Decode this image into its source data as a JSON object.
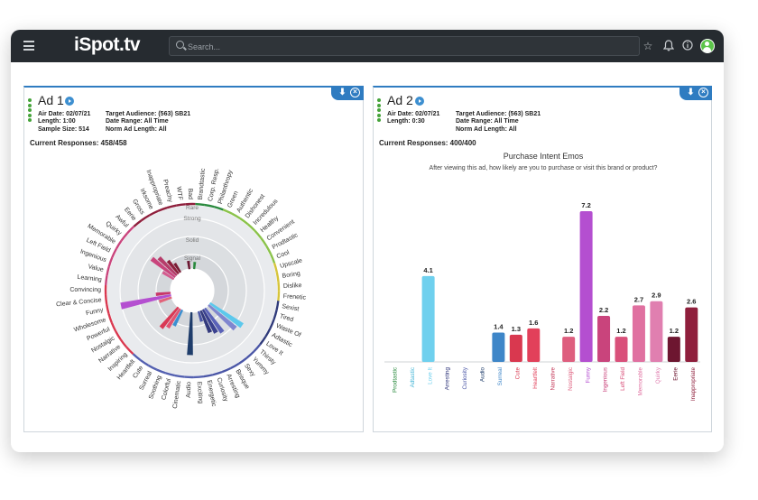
{
  "app": {
    "logo": "iSpot.tv"
  },
  "search": {
    "placeholder": "Search..."
  },
  "ad1": {
    "title": "Ad 1",
    "air_date": "Air Date: 02/07/21",
    "length": "Length: 1:00",
    "sample_size": "Sample Size: 514",
    "target": "Target Audience: (563) SB21",
    "date_range": "Date Range: All Time",
    "norm": "Norm Ad Length: All",
    "responses": "Current Responses: 458/458",
    "rings": [
      "Rare",
      "Strong",
      "Solid",
      "Signal"
    ],
    "labels": [
      "Brandtastic",
      "Corp. Resp.",
      "Philanthropy",
      "Green",
      "Authentic",
      "Dishonest",
      "Incredulous",
      "Healthy",
      "Convenient",
      "Prodtastic",
      "Cool",
      "Upscale",
      "Boring",
      "Dislike",
      "Frenetic",
      "Sexist",
      "Tired",
      "Waste Of",
      "Adtastic",
      "Love It",
      "Thirsty",
      "Yummy",
      "Sexy",
      "Brisque",
      "Arresting",
      "Curiosity",
      "Energetic",
      "Exciting",
      "Audio",
      "Cinematic",
      "Colorful",
      "Soothing",
      "Surreal",
      "Cute",
      "Heartfelt",
      "Inspiring",
      "Narrative",
      "Nostalgic",
      "Powerful",
      "Wholesome",
      "Funny",
      "Clear & Concise",
      "Convincing",
      "Learning",
      "Value",
      "Ingenious",
      "Left Field",
      "Memorable",
      "Quirky",
      "Awful",
      "Eerie",
      "Gross",
      "Irksome",
      "Inappropriate",
      "Preachy",
      "WTF",
      "Bad"
    ],
    "wedges": [
      {
        "label": "Brandtastic",
        "value": 0.12,
        "color": "#2a8a3e"
      },
      {
        "label": "Love It",
        "value": 0.66,
        "color": "#5cc8ec"
      },
      {
        "label": "Thirsty",
        "value": 0.6,
        "color": "#7f86cf"
      },
      {
        "label": "Sexy",
        "value": 0.5,
        "color": "#5a62b8"
      },
      {
        "label": "Brisque",
        "value": 0.45,
        "color": "#3a418f"
      },
      {
        "label": "Arresting",
        "value": 0.4,
        "color": "#333a7d"
      },
      {
        "label": "Curiosity",
        "value": 0.18,
        "color": "#4a56a6"
      },
      {
        "label": "Audio",
        "value": 0.72,
        "color": "#1f3d6b"
      },
      {
        "label": "Surreal",
        "value": 0.3,
        "color": "#3c8fd0"
      },
      {
        "label": "Cute",
        "value": 0.38,
        "color": "#e25270"
      },
      {
        "label": "Heartfelt",
        "value": 0.45,
        "color": "#d93955"
      },
      {
        "label": "Wholesome",
        "value": 0.22,
        "color": "#e2637a"
      },
      {
        "label": "Funny",
        "value": 0.86,
        "color": "#b44fd0"
      },
      {
        "label": "Clear & Concise",
        "value": 0.25,
        "color": "#c9386a"
      },
      {
        "label": "Memorable",
        "value": 0.22,
        "color": "#d45c8f"
      },
      {
        "label": "Quirky",
        "value": 0.5,
        "color": "#c9447c"
      },
      {
        "label": "Awful",
        "value": 0.42,
        "color": "#b63c6a"
      },
      {
        "label": "Eerie",
        "value": 0.28,
        "color": "#8e1f3c"
      },
      {
        "label": "Gross",
        "value": 0.18,
        "color": "#7a1a33"
      },
      {
        "label": "WTF",
        "value": 0.14,
        "color": "#6b1530"
      }
    ]
  },
  "ad2": {
    "title": "Ad 2",
    "air_date": "Air Date: 02/07/21",
    "length": "Length: 0:30",
    "target": "Target Audience: (563) SB21",
    "date_range": "Date Range: All Time",
    "norm": "Norm Ad Length: All",
    "responses": "Current Responses: 400/400"
  },
  "chart_data": {
    "type": "bar",
    "title": "Purchase Intent Emos",
    "subtitle": "After viewing this ad, how likely are you to purchase or visit this brand or product?",
    "categories": [
      "Prodtastic",
      "Adtastic",
      "Love It",
      "Arresting",
      "Curiosity",
      "Audio",
      "Surreal",
      "Cute",
      "Heartfelt",
      "Narrative",
      "Nostalgic",
      "Funny",
      "Ingenious",
      "Left Field",
      "Memorable",
      "Quirky",
      "Eerie",
      "Inappropriate"
    ],
    "values": [
      null,
      null,
      4.1,
      null,
      null,
      null,
      1.4,
      1.3,
      1.6,
      null,
      1.2,
      7.2,
      2.2,
      1.2,
      2.7,
      2.9,
      1.2,
      2.6
    ],
    "value_labels": [
      "",
      "",
      "4.1",
      "",
      "",
      "",
      "1.4",
      "1.3",
      "1.6",
      "",
      "1.2",
      "7.2",
      "2.2",
      "1.2",
      "2.7",
      "2.9",
      "1.2",
      "2.6"
    ],
    "colors": [
      "#2a8a3e",
      "#45b5d6",
      "#6fd0ee",
      "#333a7d",
      "#4a56a6",
      "#1f3d6b",
      "#3e86c8",
      "#d9384f",
      "#e2405a",
      "#c43a5a",
      "#de5e7e",
      "#b44fd0",
      "#c9447c",
      "#d9507a",
      "#e070a0",
      "#e07fb0",
      "#6d1630",
      "#8f1f3c"
    ],
    "ylim": [
      0,
      7.5
    ]
  }
}
